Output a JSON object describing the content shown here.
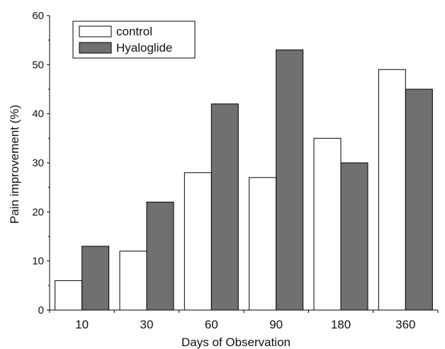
{
  "chart_data": {
    "type": "bar",
    "categories": [
      "10",
      "30",
      "60",
      "90",
      "180",
      "360"
    ],
    "series": [
      {
        "name": "control",
        "values": [
          6,
          12,
          28,
          27,
          35,
          49
        ],
        "color": "#ffffff"
      },
      {
        "name": "Hyaloglide",
        "values": [
          13,
          22,
          42,
          53,
          30,
          45
        ],
        "color": "#707070"
      }
    ],
    "title": "",
    "xlabel": "Days of Observation",
    "ylabel": "Pain improvement (%)",
    "ylim": [
      0,
      60
    ],
    "yticks": [
      "0",
      "10",
      "20",
      "30",
      "40",
      "50",
      "60"
    ],
    "grid": false,
    "legend_position": "top-left"
  }
}
